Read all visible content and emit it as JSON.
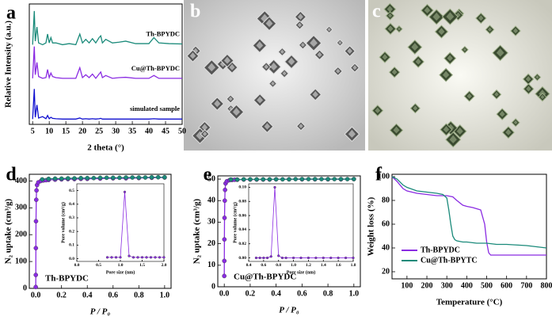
{
  "chart_data": [
    {
      "type": "line",
      "panel": "a",
      "xlabel": "2 theta (°)",
      "ylabel": "Relative Intensity (a.u.)",
      "xlim": [
        4,
        50
      ],
      "xticks": [
        5,
        10,
        15,
        20,
        25,
        30,
        35,
        40,
        45,
        50
      ],
      "ylim": [
        0,
        3.4
      ],
      "x": [
        5,
        5.5,
        5.8,
        6.3,
        6.8,
        8,
        9,
        9.5,
        10,
        10.5,
        11,
        12,
        14,
        16,
        18,
        19.2,
        20,
        21,
        22,
        23,
        24,
        25,
        25.5,
        26,
        27,
        29,
        31,
        33,
        36,
        40,
        41.5,
        43,
        46,
        50
      ],
      "series": [
        {
          "name": "Th-BPYDC",
          "color": "#1a8a7a",
          "values": [
            2.25,
            3.2,
            2.35,
            2.75,
            2.3,
            2.25,
            2.3,
            2.55,
            2.3,
            2.45,
            2.3,
            2.3,
            2.25,
            2.28,
            2.25,
            2.55,
            2.3,
            2.4,
            2.3,
            2.42,
            2.3,
            2.45,
            2.5,
            2.3,
            2.4,
            2.3,
            2.32,
            2.35,
            2.28,
            2.28,
            2.45,
            2.3,
            2.28,
            2.27
          ]
        },
        {
          "name": "Cu@Th-BPYDC",
          "color": "#8a2be2",
          "values": [
            1.3,
            2.2,
            1.4,
            1.75,
            1.35,
            1.3,
            1.32,
            1.55,
            1.32,
            1.45,
            1.35,
            1.32,
            1.3,
            1.3,
            1.3,
            1.6,
            1.32,
            1.4,
            1.32,
            1.42,
            1.3,
            1.42,
            1.48,
            1.32,
            1.38,
            1.3,
            1.32,
            1.33,
            1.3,
            1.3,
            1.38,
            1.3,
            1.3,
            1.3
          ]
        },
        {
          "name": "simulated sample",
          "color": "#1010d0",
          "values": [
            0.15,
            1.0,
            0.2,
            0.55,
            0.18,
            0.22,
            0.16,
            0.25,
            0.16,
            0.2,
            0.17,
            0.16,
            0.15,
            0.15,
            0.15,
            0.18,
            0.15,
            0.16,
            0.15,
            0.16,
            0.15,
            0.16,
            0.17,
            0.15,
            0.15,
            0.15,
            0.15,
            0.15,
            0.15,
            0.15,
            0.16,
            0.15,
            0.15,
            0.15
          ]
        }
      ]
    },
    {
      "type": "line",
      "panel": "d",
      "xlabel": "P / P₀",
      "ylabel": "N₂ uptake (cm³/g)",
      "annotation": "Th-BPYDC",
      "marker": "circle",
      "xlim": [
        -0.05,
        1.05
      ],
      "xticks": [
        {
          "value": 0,
          "label": "0.0"
        },
        0.2,
        0.4,
        0.6,
        0.8,
        {
          "value": 1,
          "label": "1.0"
        }
      ],
      "ylim": [
        0,
        425
      ],
      "yticks": [
        0,
        100,
        200,
        300,
        400
      ],
      "series": [
        {
          "color": "#8a2be2",
          "x": [
            0,
            0.0005,
            0.001,
            0.002,
            0.004,
            0.006,
            0.01,
            0.02,
            0.04,
            0.06,
            0.08,
            0.1,
            0.15,
            0.2,
            0.25,
            0.3,
            0.35,
            0.4,
            0.5,
            0.6,
            0.7,
            0.8,
            0.9,
            1.0
          ],
          "values": [
            5,
            50,
            150,
            250,
            330,
            365,
            385,
            395,
            400,
            402,
            403,
            404,
            405,
            406,
            407,
            407,
            408,
            408,
            409,
            410,
            410,
            411,
            412,
            413
          ]
        },
        {
          "color": "#1a8a7a",
          "x": [
            1.0,
            0.95,
            0.9,
            0.85,
            0.8,
            0.75,
            0.7,
            0.65,
            0.6,
            0.55,
            0.5,
            0.45,
            0.4,
            0.35,
            0.3,
            0.25,
            0.2,
            0.15,
            0.1,
            0.05
          ],
          "values": [
            414,
            414,
            414,
            413,
            413,
            413,
            413,
            412,
            412,
            412,
            412,
            411,
            411,
            411,
            410,
            410,
            409,
            409,
            408,
            406
          ]
        }
      ],
      "inset": {
        "xlabel": "Pore size (nm)",
        "ylabel": "Pore volume (cm³/g)",
        "marker": "circle",
        "xlim": [
          0,
          2
        ],
        "xticks": [
          {
            "value": 0,
            "label": "0.0"
          },
          0.5,
          {
            "value": 1,
            "label": "1.0"
          },
          1.5,
          {
            "value": 2,
            "label": "2.0"
          }
        ],
        "ylim": [
          -0.02,
          0.55
        ],
        "yticks": [
          {
            "value": 0,
            "label": "0.0"
          },
          0.1,
          0.2,
          0.3,
          0.4,
          0.5
        ],
        "series": [
          {
            "color": "#8a2be2",
            "x": [
              0.7,
              0.8,
              0.9,
              1.0,
              1.1,
              1.2,
              1.3,
              1.4,
              1.5,
              1.6,
              1.7,
              1.8,
              1.9,
              2.0
            ],
            "values": [
              0.01,
              0.01,
              0.01,
              0.01,
              0.49,
              0.02,
              0.01,
              0.01,
              0.01,
              0.01,
              0.01,
              0.01,
              0.01,
              0.01
            ]
          }
        ]
      }
    },
    {
      "type": "line",
      "panel": "e",
      "xlabel": "P / P₀",
      "ylabel": "N₂ uptake (cm³/g)",
      "annotation": "Cu@Th-BPYDC",
      "marker": "circle",
      "xlim": [
        -0.05,
        1.05
      ],
      "xticks": [
        {
          "value": 0,
          "label": "0.0"
        },
        0.2,
        0.4,
        0.6,
        0.8,
        {
          "value": 1,
          "label": "1.0"
        }
      ],
      "ylim": [
        0,
        51.5
      ],
      "yticks": [
        0,
        10,
        20,
        30,
        40,
        50
      ],
      "series": [
        {
          "color": "#8a2be2",
          "x": [
            0,
            0.0005,
            0.001,
            0.002,
            0.004,
            0.006,
            0.01,
            0.02,
            0.04,
            0.06,
            0.08,
            0.1,
            0.15,
            0.2,
            0.25,
            0.3,
            0.35,
            0.4,
            0.5,
            0.6,
            0.7,
            0.8,
            0.9,
            1.0
          ],
          "values": [
            5,
            12,
            22,
            32,
            40,
            45,
            48,
            49,
            49.5,
            49.6,
            49.7,
            49.7,
            49.8,
            49.8,
            49.8,
            49.8,
            49.8,
            49.9,
            49.9,
            49.9,
            49.9,
            49.9,
            49.9,
            50
          ]
        },
        {
          "color": "#1a8a7a",
          "x": [
            1.0,
            0.95,
            0.9,
            0.85,
            0.8,
            0.75,
            0.7,
            0.65,
            0.6,
            0.55,
            0.5,
            0.45,
            0.4,
            0.35,
            0.3,
            0.25,
            0.2,
            0.15,
            0.1,
            0.05
          ],
          "values": [
            50,
            50,
            50,
            50,
            50,
            50,
            50,
            50,
            50,
            50,
            49.9,
            49.9,
            49.9,
            49.9,
            49.9,
            49.9,
            49.9,
            49.9,
            49.8,
            49.8
          ]
        }
      ],
      "inset": {
        "xlabel": "Pore size (nm)",
        "ylabel": "Pore volume (cm³/g)",
        "marker": "circle",
        "xlim": [
          0.4,
          1.8
        ],
        "xticks": [
          0.4,
          0.6,
          0.8,
          {
            "value": 1,
            "label": "1.0"
          },
          1.2,
          1.4,
          1.6,
          1.8
        ],
        "ylim": [
          -0.005,
          0.105
        ],
        "yticks": [
          {
            "value": 0,
            "label": "0.00"
          },
          {
            "value": 0.02,
            "label": "0.02"
          },
          {
            "value": 0.04,
            "label": "0.04"
          },
          {
            "value": 0.06,
            "label": "0.06"
          },
          {
            "value": 0.08,
            "label": "0.08"
          },
          {
            "value": 0.1,
            "label": "0.10"
          }
        ],
        "series": [
          {
            "color": "#8a2be2",
            "x": [
              0.5,
              0.55,
              0.6,
              0.65,
              0.7,
              0.75,
              0.8,
              0.85,
              0.9,
              1.0,
              1.1,
              1.2,
              1.3,
              1.4,
              1.5,
              1.6,
              1.7,
              1.8
            ],
            "values": [
              0,
              0,
              0,
              0,
              0.002,
              0.1,
              0.003,
              0,
              0,
              0,
              0,
              0,
              0,
              0,
              0,
              0,
              0,
              0
            ]
          }
        ]
      }
    },
    {
      "type": "line",
      "panel": "f",
      "xlabel": "Temperature (°C)",
      "ylabel": "Weight loss (%)",
      "legend": "lower-left",
      "xlim": [
        25,
        800
      ],
      "xticks": [
        100,
        200,
        300,
        400,
        500,
        600,
        700,
        800
      ],
      "ylim": [
        14,
        102
      ],
      "yticks": [
        20,
        40,
        60,
        80,
        100
      ],
      "series": [
        {
          "name": "Th-BPYDC",
          "color": "#8a2be2",
          "x": [
            25,
            50,
            80,
            100,
            150,
            200,
            250,
            300,
            330,
            350,
            380,
            400,
            430,
            450,
            470,
            490,
            500,
            510,
            520,
            550,
            600,
            700,
            800
          ],
          "values": [
            100,
            96,
            90,
            88,
            86,
            85,
            84,
            84,
            83,
            80,
            76,
            75,
            74,
            73,
            72,
            60,
            45,
            36,
            34,
            34,
            34,
            34,
            34
          ]
        },
        {
          "name": "Cu@Th-BPYTC",
          "color": "#1a8a7a",
          "x": [
            25,
            50,
            80,
            100,
            150,
            200,
            250,
            280,
            300,
            310,
            320,
            330,
            340,
            350,
            380,
            400,
            450,
            500,
            550,
            600,
            700,
            800
          ],
          "values": [
            100,
            98,
            93,
            91,
            88,
            87,
            86,
            85,
            82,
            72,
            60,
            50,
            47,
            46,
            45,
            45,
            44,
            44,
            43,
            43,
            42,
            40
          ]
        }
      ]
    }
  ],
  "images": [
    {
      "panel": "b"
    },
    {
      "panel": "c"
    }
  ]
}
